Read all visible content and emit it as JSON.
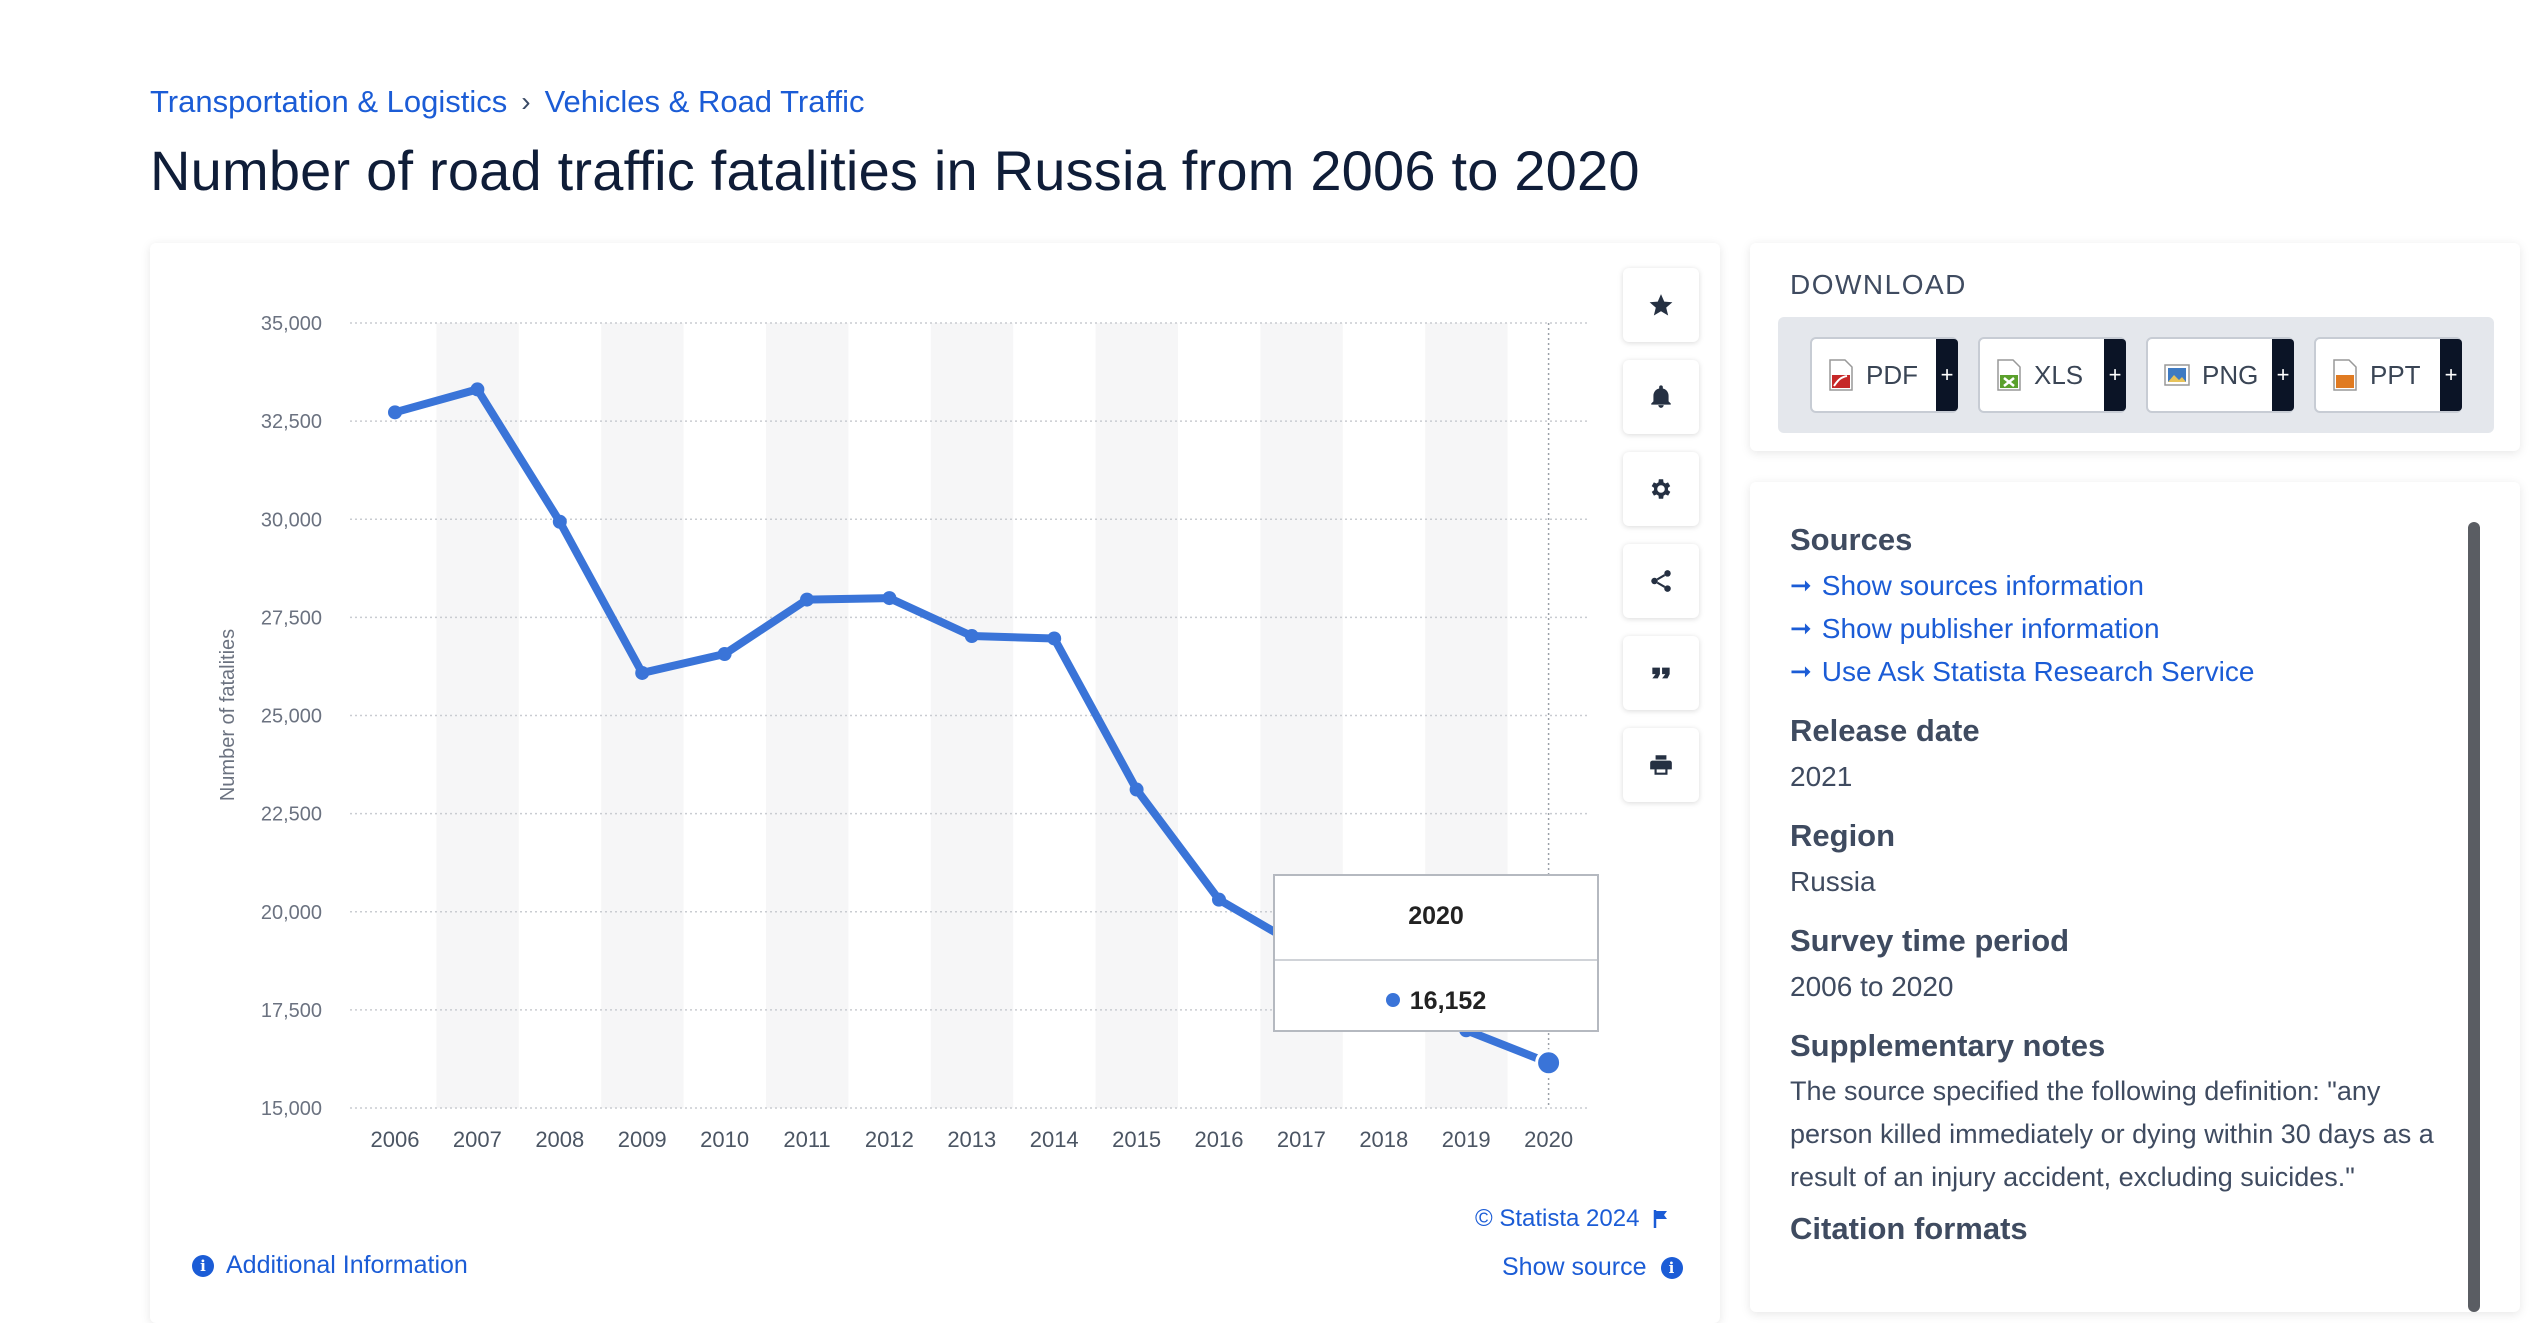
{
  "breadcrumb": {
    "items": [
      "Transportation & Logistics",
      "Vehicles & Road Traffic"
    ],
    "separator": "›"
  },
  "page_title": "Number of road traffic fatalities in Russia from 2006 to 2020",
  "chart_actions": [
    "star-icon",
    "bell-icon",
    "gear-icon",
    "share-icon",
    "quote-icon",
    "print-icon"
  ],
  "chart_footer": {
    "copyright": "© Statista 2024",
    "show_source": "Show source",
    "additional_info": "Additional Information"
  },
  "tooltip": {
    "year": "2020",
    "value": "16,152"
  },
  "chart_data": {
    "type": "line",
    "categories": [
      "2006",
      "2007",
      "2008",
      "2009",
      "2010",
      "2011",
      "2012",
      "2013",
      "2014",
      "2015",
      "2016",
      "2017",
      "2018",
      "2019",
      "2020"
    ],
    "series": [
      {
        "values": [
          32724,
          33308,
          29936,
          26084,
          26567,
          27953,
          27991,
          27025,
          26963,
          23114,
          20308,
          19088,
          18214,
          16981,
          16152
        ]
      }
    ],
    "ylabel": "Number of fatalities",
    "ylim": [
      15000,
      35000
    ],
    "yticks": [
      "15,000",
      "17,500",
      "20,000",
      "22,500",
      "25,000",
      "27,500",
      "30,000",
      "32,500",
      "35,000"
    ],
    "ytick_values": [
      15000,
      17500,
      20000,
      22500,
      25000,
      27500,
      30000,
      32500,
      35000
    ],
    "line_color": "#3a74d8",
    "grid": true,
    "highlighted_point": "2020"
  },
  "download": {
    "title": "DOWNLOAD",
    "buttons": [
      {
        "label": "PDF",
        "icon": "pdf-file-icon",
        "color": "#c62828"
      },
      {
        "label": "XLS",
        "icon": "xls-file-icon",
        "color": "#5aa02c"
      },
      {
        "label": "PNG",
        "icon": "png-file-icon",
        "color": "#3e7ac2"
      },
      {
        "label": "PPT",
        "icon": "ppt-file-icon",
        "color": "#e07b22"
      }
    ],
    "plus": "+"
  },
  "info": {
    "sources_heading": "Sources",
    "source_links": [
      "Show sources information",
      "Show publisher information",
      "Use Ask Statista Research Service"
    ],
    "release_heading": "Release date",
    "release_value": "2021",
    "region_heading": "Region",
    "region_value": "Russia",
    "period_heading": "Survey time period",
    "period_value": "2006 to 2020",
    "notes_heading": "Supplementary notes",
    "notes_value": "The source specified the following definition: \"any person killed immediately or dying within 30 days as a result of an injury accident, excluding suicides.\"",
    "citation_heading": "Citation formats"
  }
}
